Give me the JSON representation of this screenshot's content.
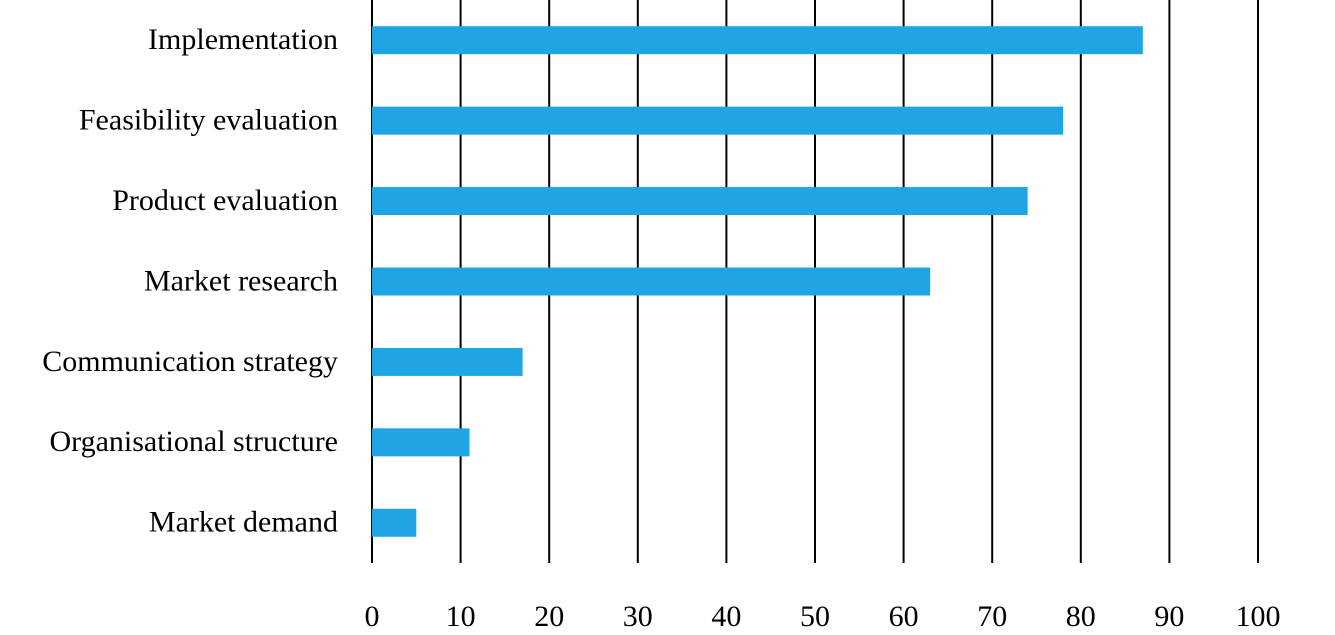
{
  "chart_data": {
    "type": "bar",
    "orientation": "horizontal",
    "categories": [
      "Implementation",
      "Feasibility evaluation",
      "Product evaluation",
      "Market research",
      "Communication strategy",
      "Organisational structure",
      "Market demand"
    ],
    "values": [
      87,
      78,
      74,
      63,
      17,
      11,
      5
    ],
    "color": "#1fa5e4",
    "xlim": [
      0,
      100
    ],
    "xticks": [
      0,
      10,
      20,
      30,
      40,
      50,
      60,
      70,
      80,
      90,
      100
    ],
    "grid": true
  }
}
